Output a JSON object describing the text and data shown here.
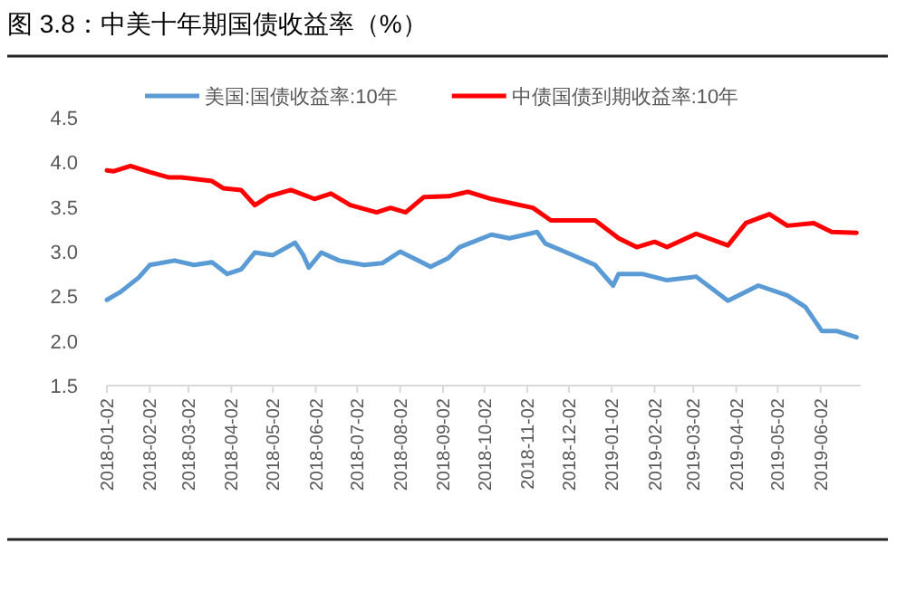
{
  "chart_data": {
    "type": "line",
    "title": "图 3.8：中美十年期国债收益率（%）",
    "series": [
      {
        "name": "美国:国债收益率:10年",
        "color": "#5b9bd5",
        "x": [
          "2018-01-02",
          "2018-01-12",
          "2018-01-25",
          "2018-02-02",
          "2018-02-20",
          "2018-03-06",
          "2018-03-19",
          "2018-03-30",
          "2018-04-09",
          "2018-04-19",
          "2018-05-02",
          "2018-05-18",
          "2018-05-24",
          "2018-05-28",
          "2018-06-06",
          "2018-06-19",
          "2018-07-07",
          "2018-07-20",
          "2018-08-02",
          "2018-08-15",
          "2018-08-24",
          "2018-09-06",
          "2018-09-14",
          "2018-10-07",
          "2018-10-20",
          "2018-11-09",
          "2018-11-15",
          "2018-12-02",
          "2018-12-21",
          "2019-01-03",
          "2019-01-07",
          "2019-01-24",
          "2019-02-11",
          "2019-03-04",
          "2019-03-27",
          "2019-04-18",
          "2019-05-09",
          "2019-05-22",
          "2019-06-03",
          "2019-06-14",
          "2019-06-28"
        ],
        "values": [
          2.46,
          2.55,
          2.71,
          2.85,
          2.9,
          2.85,
          2.88,
          2.75,
          2.8,
          2.99,
          2.96,
          3.1,
          2.96,
          2.82,
          2.99,
          2.9,
          2.85,
          2.87,
          3.0,
          2.9,
          2.83,
          2.93,
          3.05,
          3.19,
          3.15,
          3.22,
          3.09,
          2.98,
          2.85,
          2.62,
          2.75,
          2.75,
          2.68,
          2.72,
          2.45,
          2.62,
          2.51,
          2.38,
          2.11,
          2.11,
          2.04
        ]
      },
      {
        "name": "中债国债到期收益率:10年",
        "color": "#ff0000",
        "x": [
          "2018-01-02",
          "2018-01-07",
          "2018-01-19",
          "2018-02-02",
          "2018-02-16",
          "2018-02-25",
          "2018-03-19",
          "2018-03-27",
          "2018-04-09",
          "2018-04-19",
          "2018-04-29",
          "2018-05-15",
          "2018-06-01",
          "2018-06-13",
          "2018-06-27",
          "2018-07-16",
          "2018-07-26",
          "2018-08-06",
          "2018-08-19",
          "2018-09-06",
          "2018-09-20",
          "2018-10-07",
          "2018-11-06",
          "2018-11-19",
          "2018-12-21",
          "2019-01-07",
          "2019-01-20",
          "2019-02-02",
          "2019-02-11",
          "2019-03-04",
          "2019-03-27",
          "2019-04-09",
          "2019-04-26",
          "2019-05-09",
          "2019-05-28",
          "2019-06-10",
          "2019-06-28"
        ],
        "values": [
          3.91,
          3.9,
          3.96,
          3.89,
          3.83,
          3.83,
          3.79,
          3.71,
          3.69,
          3.52,
          3.62,
          3.69,
          3.59,
          3.65,
          3.52,
          3.44,
          3.49,
          3.44,
          3.61,
          3.62,
          3.67,
          3.59,
          3.49,
          3.35,
          3.35,
          3.15,
          3.05,
          3.11,
          3.05,
          3.2,
          3.07,
          3.32,
          3.42,
          3.29,
          3.32,
          3.22,
          3.21
        ]
      }
    ],
    "xlim": [
      "2018-01-02",
      "2019-07-01"
    ],
    "xticks": [
      "2018-01-02",
      "2018-02-02",
      "2018-03-02",
      "2018-04-02",
      "2018-05-02",
      "2018-06-02",
      "2018-07-02",
      "2018-08-02",
      "2018-09-02",
      "2018-10-02",
      "2018-11-02",
      "2018-12-02",
      "2019-01-02",
      "2019-02-02",
      "2019-03-02",
      "2019-04-02",
      "2019-05-02",
      "2019-06-02"
    ],
    "ylim": [
      1.5,
      4.5
    ],
    "yticks": [
      1.5,
      {
        "value": 2,
        "label": "2.0"
      },
      2.5,
      {
        "value": 3,
        "label": "3.0"
      },
      3.5,
      {
        "value": 4,
        "label": "4.0"
      },
      4.5
    ],
    "legend": "top",
    "grid": false,
    "line_style": "solid"
  }
}
